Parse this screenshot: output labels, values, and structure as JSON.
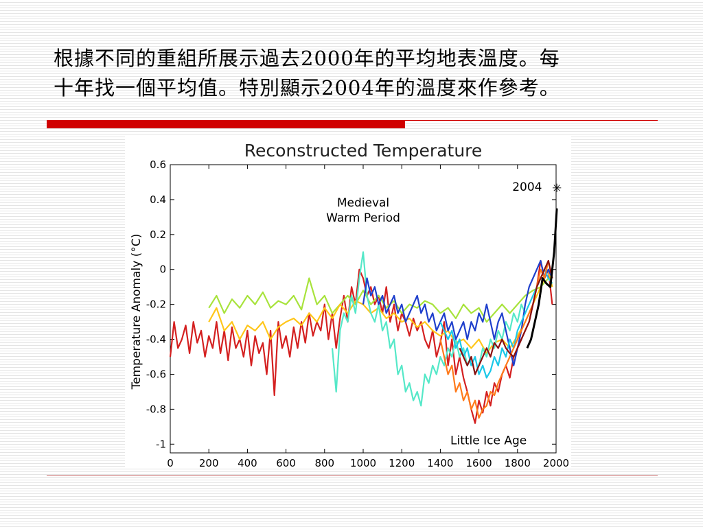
{
  "slide": {
    "title_line1": "根據不同的重組所展示過去2000年的平均地表溫度。每",
    "title_line2": "十年找一個平均值。特別顯示2004年的溫度來作參考。",
    "accent_color": "#d00000"
  },
  "chart_data": {
    "type": "line",
    "title": "Reconstructed Temperature",
    "ylabel": "Temperature Anomaly (°C)",
    "xlabel": "",
    "xlim": [
      0,
      2000
    ],
    "ylim": [
      -1.05,
      0.6
    ],
    "xticks": [
      "0",
      "200",
      "400",
      "600",
      "800",
      "1000",
      "1200",
      "1400",
      "1600",
      "1800",
      "2000"
    ],
    "yticks": [
      "0.6",
      "0.4",
      "0.2",
      "0",
      "-0.2",
      "-0.4",
      "-0.6",
      "-0.8",
      "-1"
    ],
    "grid": false,
    "annotations": [
      {
        "name": "medieval-warm-period-annotation",
        "lines": [
          "Medieval",
          "Warm Period"
        ],
        "x": 1000,
        "y": 0.36
      },
      {
        "name": "little-ice-age-annotation",
        "lines": [
          "Little Ice Age"
        ],
        "x": 1650,
        "y": -1.0
      },
      {
        "name": "year-2004-annotation",
        "lines": [
          "2004"
        ],
        "x": 1850,
        "y": 0.45
      }
    ],
    "marker_2004": {
      "label": "2004",
      "x": 2004,
      "y": 0.45,
      "symbol": "✳"
    },
    "series": [
      {
        "color": "#d42020",
        "x": [
          0,
          20,
          40,
          60,
          80,
          100,
          120,
          140,
          160,
          180,
          200,
          220,
          240,
          260,
          280,
          300,
          320,
          340,
          360,
          380,
          400,
          420,
          440,
          460,
          480,
          500,
          520,
          540,
          560,
          580,
          600,
          620,
          640,
          660,
          680,
          700,
          720,
          740,
          760,
          780,
          800,
          820,
          840,
          860,
          880,
          900,
          920,
          940,
          960,
          980,
          1000,
          1020,
          1040,
          1060,
          1080,
          1100,
          1120,
          1140,
          1160,
          1180,
          1200,
          1220,
          1240,
          1260,
          1280,
          1300,
          1320,
          1340,
          1360,
          1380,
          1400,
          1420,
          1440,
          1460,
          1480,
          1500,
          1520,
          1540,
          1560,
          1580,
          1600,
          1620,
          1640,
          1660,
          1680,
          1700,
          1720,
          1740,
          1760,
          1780,
          1800,
          1820,
          1840,
          1860,
          1880,
          1900,
          1920,
          1940,
          1960,
          1980
        ],
        "values": [
          -0.5,
          -0.3,
          -0.45,
          -0.4,
          -0.32,
          -0.48,
          -0.3,
          -0.42,
          -0.35,
          -0.5,
          -0.38,
          -0.45,
          -0.3,
          -0.48,
          -0.35,
          -0.52,
          -0.33,
          -0.45,
          -0.4,
          -0.5,
          -0.35,
          -0.55,
          -0.38,
          -0.48,
          -0.42,
          -0.6,
          -0.35,
          -0.72,
          -0.3,
          -0.45,
          -0.38,
          -0.5,
          -0.33,
          -0.45,
          -0.3,
          -0.42,
          -0.25,
          -0.38,
          -0.3,
          -0.35,
          -0.2,
          -0.4,
          -0.25,
          -0.45,
          -0.28,
          -0.15,
          -0.3,
          -0.1,
          -0.2,
          0.0,
          -0.05,
          -0.15,
          -0.1,
          -0.2,
          -0.15,
          -0.25,
          -0.1,
          -0.3,
          -0.2,
          -0.35,
          -0.25,
          -0.3,
          -0.38,
          -0.28,
          -0.35,
          -0.3,
          -0.4,
          -0.45,
          -0.35,
          -0.5,
          -0.42,
          -0.3,
          -0.55,
          -0.4,
          -0.6,
          -0.5,
          -0.62,
          -0.7,
          -0.8,
          -0.88,
          -0.75,
          -0.82,
          -0.7,
          -0.78,
          -0.65,
          -0.7,
          -0.6,
          -0.55,
          -0.62,
          -0.5,
          -0.45,
          -0.4,
          -0.35,
          -0.3,
          -0.2,
          -0.1,
          0.05,
          -0.05,
          0.0,
          -0.2
        ]
      },
      {
        "color": "#a8e33c",
        "x": [
          200,
          240,
          280,
          320,
          360,
          400,
          440,
          480,
          520,
          560,
          600,
          640,
          680,
          720,
          760,
          800,
          840,
          880,
          920,
          960,
          1000,
          1040,
          1080,
          1120,
          1160,
          1200,
          1240,
          1280,
          1320,
          1360,
          1400,
          1440,
          1480,
          1520,
          1560,
          1600,
          1640,
          1680,
          1720,
          1760,
          1800,
          1840,
          1880,
          1920,
          1960,
          1980
        ],
        "values": [
          -0.22,
          -0.15,
          -0.25,
          -0.17,
          -0.22,
          -0.15,
          -0.2,
          -0.13,
          -0.22,
          -0.18,
          -0.2,
          -0.15,
          -0.23,
          -0.05,
          -0.2,
          -0.15,
          -0.25,
          -0.2,
          -0.15,
          -0.2,
          -0.12,
          -0.2,
          -0.15,
          -0.22,
          -0.18,
          -0.25,
          -0.2,
          -0.22,
          -0.18,
          -0.2,
          -0.25,
          -0.22,
          -0.28,
          -0.2,
          -0.25,
          -0.22,
          -0.3,
          -0.25,
          -0.2,
          -0.25,
          -0.2,
          -0.15,
          -0.12,
          -0.1,
          -0.05,
          -0.08
        ]
      },
      {
        "color": "#ffc61a",
        "x": [
          200,
          240,
          280,
          320,
          360,
          400,
          440,
          480,
          520,
          560,
          600,
          640,
          680,
          720,
          760,
          800,
          840,
          880,
          920,
          960,
          1000,
          1040,
          1080,
          1120,
          1160,
          1200,
          1240,
          1280,
          1320,
          1360,
          1400,
          1440,
          1480,
          1520,
          1560,
          1600,
          1640,
          1680,
          1720,
          1760,
          1800,
          1840,
          1880,
          1920,
          1960,
          1980
        ],
        "values": [
          -0.3,
          -0.22,
          -0.35,
          -0.3,
          -0.4,
          -0.32,
          -0.35,
          -0.3,
          -0.4,
          -0.33,
          -0.3,
          -0.28,
          -0.32,
          -0.25,
          -0.3,
          -0.22,
          -0.28,
          -0.2,
          -0.25,
          -0.18,
          -0.2,
          -0.25,
          -0.22,
          -0.28,
          -0.25,
          -0.3,
          -0.28,
          -0.33,
          -0.3,
          -0.35,
          -0.38,
          -0.35,
          -0.42,
          -0.4,
          -0.45,
          -0.4,
          -0.48,
          -0.42,
          -0.4,
          -0.45,
          -0.38,
          -0.3,
          -0.2,
          -0.1,
          0.0,
          -0.1
        ]
      },
      {
        "color": "#55e8c8",
        "x": [
          840,
          860,
          880,
          900,
          920,
          940,
          960,
          980,
          1000,
          1020,
          1040,
          1060,
          1080,
          1100,
          1120,
          1140,
          1160,
          1180,
          1200,
          1220,
          1240,
          1260,
          1280,
          1300,
          1320,
          1340,
          1360,
          1380,
          1400,
          1420,
          1440,
          1460,
          1480,
          1500,
          1520,
          1540,
          1560,
          1580,
          1600,
          1620,
          1640,
          1660,
          1680,
          1700,
          1720,
          1740,
          1760,
          1780,
          1800,
          1820,
          1840
        ],
        "values": [
          -0.45,
          -0.7,
          -0.35,
          -0.25,
          -0.3,
          -0.15,
          -0.25,
          -0.05,
          0.1,
          -0.15,
          -0.25,
          -0.3,
          -0.2,
          -0.35,
          -0.3,
          -0.45,
          -0.4,
          -0.6,
          -0.55,
          -0.7,
          -0.65,
          -0.75,
          -0.7,
          -0.78,
          -0.6,
          -0.65,
          -0.55,
          -0.6,
          -0.5,
          -0.55,
          -0.45,
          -0.5,
          -0.4,
          -0.5,
          -0.45,
          -0.55,
          -0.5,
          -0.6,
          -0.55,
          -0.45,
          -0.5,
          -0.4,
          -0.45,
          -0.35,
          -0.4,
          -0.3,
          -0.35,
          -0.25,
          -0.3,
          -0.2,
          -0.25
        ]
      },
      {
        "color": "#1e3fcc",
        "x": [
          1000,
          1020,
          1040,
          1060,
          1080,
          1100,
          1120,
          1140,
          1160,
          1180,
          1200,
          1220,
          1240,
          1260,
          1280,
          1300,
          1320,
          1340,
          1360,
          1380,
          1400,
          1420,
          1440,
          1460,
          1480,
          1500,
          1520,
          1540,
          1560,
          1580,
          1600,
          1620,
          1640,
          1660,
          1680,
          1700,
          1720,
          1740,
          1760,
          1780,
          1800,
          1820,
          1840,
          1860,
          1880,
          1900,
          1920,
          1940,
          1960,
          1980
        ],
        "values": [
          -0.2,
          -0.05,
          -0.15,
          -0.1,
          -0.2,
          -0.15,
          -0.25,
          -0.2,
          -0.15,
          -0.25,
          -0.2,
          -0.3,
          -0.25,
          -0.2,
          -0.15,
          -0.25,
          -0.2,
          -0.3,
          -0.25,
          -0.35,
          -0.3,
          -0.25,
          -0.35,
          -0.3,
          -0.4,
          -0.35,
          -0.3,
          -0.4,
          -0.3,
          -0.35,
          -0.25,
          -0.3,
          -0.2,
          -0.3,
          -0.4,
          -0.3,
          -0.25,
          -0.35,
          -0.45,
          -0.55,
          -0.45,
          -0.35,
          -0.2,
          -0.1,
          -0.05,
          0.0,
          0.05,
          -0.05,
          0.0,
          -0.05
        ]
      },
      {
        "color": "#1ac8e8",
        "x": [
          1400,
          1420,
          1440,
          1460,
          1480,
          1500,
          1520,
          1540,
          1560,
          1580,
          1600,
          1620,
          1640,
          1660,
          1680,
          1700,
          1720,
          1740,
          1760,
          1780,
          1800,
          1820,
          1840,
          1860,
          1880,
          1900,
          1920,
          1940,
          1960,
          1980
        ],
        "values": [
          -0.3,
          -0.35,
          -0.4,
          -0.35,
          -0.45,
          -0.4,
          -0.5,
          -0.45,
          -0.55,
          -0.5,
          -0.6,
          -0.55,
          -0.62,
          -0.58,
          -0.5,
          -0.55,
          -0.45,
          -0.5,
          -0.4,
          -0.45,
          -0.35,
          -0.3,
          -0.25,
          -0.2,
          -0.15,
          -0.1,
          -0.05,
          0.0,
          -0.05,
          -0.08
        ]
      },
      {
        "color": "#ff7a1a",
        "x": [
          1400,
          1420,
          1440,
          1460,
          1480,
          1500,
          1520,
          1540,
          1560,
          1580,
          1600,
          1620,
          1640,
          1660,
          1680,
          1700,
          1720,
          1740,
          1760,
          1780,
          1800,
          1820,
          1840,
          1860,
          1880,
          1900,
          1920,
          1940,
          1960,
          1980
        ],
        "values": [
          -0.4,
          -0.5,
          -0.6,
          -0.55,
          -0.7,
          -0.65,
          -0.75,
          -0.7,
          -0.8,
          -0.75,
          -0.85,
          -0.8,
          -0.78,
          -0.7,
          -0.72,
          -0.65,
          -0.6,
          -0.55,
          -0.5,
          -0.45,
          -0.4,
          -0.35,
          -0.3,
          -0.25,
          -0.2,
          -0.1,
          0.0,
          -0.05,
          0.05,
          -0.05
        ]
      },
      {
        "color": "#8a1010",
        "x": [
          1500,
          1520,
          1540,
          1560,
          1580,
          1600,
          1620,
          1640,
          1660,
          1680,
          1700,
          1720,
          1740,
          1760,
          1780,
          1800,
          1820,
          1840,
          1860,
          1880,
          1900,
          1920,
          1940,
          1960,
          1980
        ],
        "values": [
          -0.45,
          -0.5,
          -0.55,
          -0.5,
          -0.6,
          -0.55,
          -0.5,
          -0.45,
          -0.5,
          -0.42,
          -0.45,
          -0.4,
          -0.45,
          -0.48,
          -0.5,
          -0.45,
          -0.4,
          -0.35,
          -0.3,
          -0.2,
          -0.1,
          -0.05,
          0.0,
          0.05,
          -0.05
        ]
      },
      {
        "color": "#000000",
        "x": [
          1850,
          1870,
          1890,
          1910,
          1930,
          1950,
          1970,
          1990,
          2004
        ],
        "values": [
          -0.45,
          -0.4,
          -0.3,
          -0.2,
          -0.05,
          -0.08,
          -0.1,
          0.1,
          0.35
        ]
      }
    ]
  }
}
